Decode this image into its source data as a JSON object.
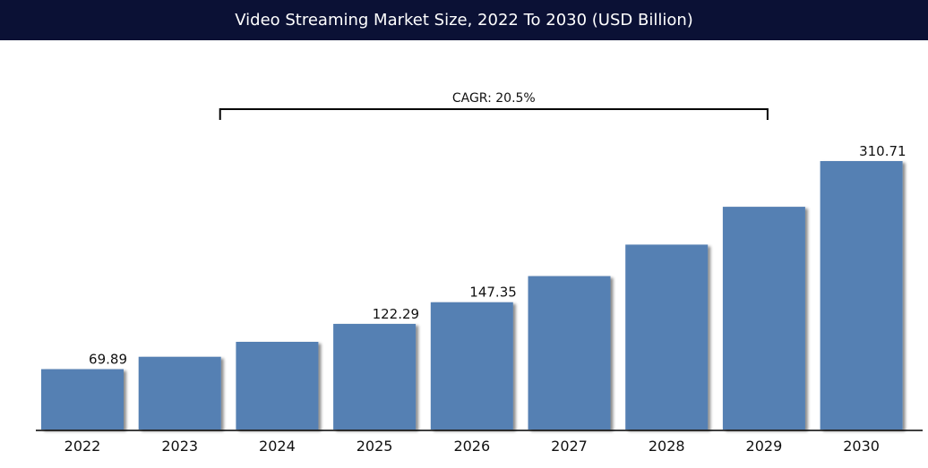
{
  "title": "Video Streaming Market Size, 2022 To 2030 (USD Billion)",
  "colors": {
    "bar": "#5580b3",
    "title_bg": "#0b1135",
    "title_text": "#ffffff"
  },
  "chart_data": {
    "type": "bar",
    "title": "Video Streaming Market Size, 2022 To 2030 (USD Billion)",
    "xlabel": "",
    "ylabel": "",
    "ylim": [
      0,
      340
    ],
    "grid": false,
    "categories": [
      "2022",
      "2023",
      "2024",
      "2025",
      "2026",
      "2027",
      "2028",
      "2029",
      "2030"
    ],
    "series": [
      {
        "values": [
          69.89,
          84.2,
          101.5,
          122.29,
          147.35,
          177.6,
          214.0,
          257.8,
          310.71
        ]
      }
    ],
    "data_labels": [
      "69.89",
      "",
      "",
      "122.29",
      "147.35",
      "",
      "",
      "",
      "310.71"
    ],
    "annotation": {
      "text": "CAGR: 20.5%",
      "from": "2023",
      "to": "2029"
    }
  }
}
